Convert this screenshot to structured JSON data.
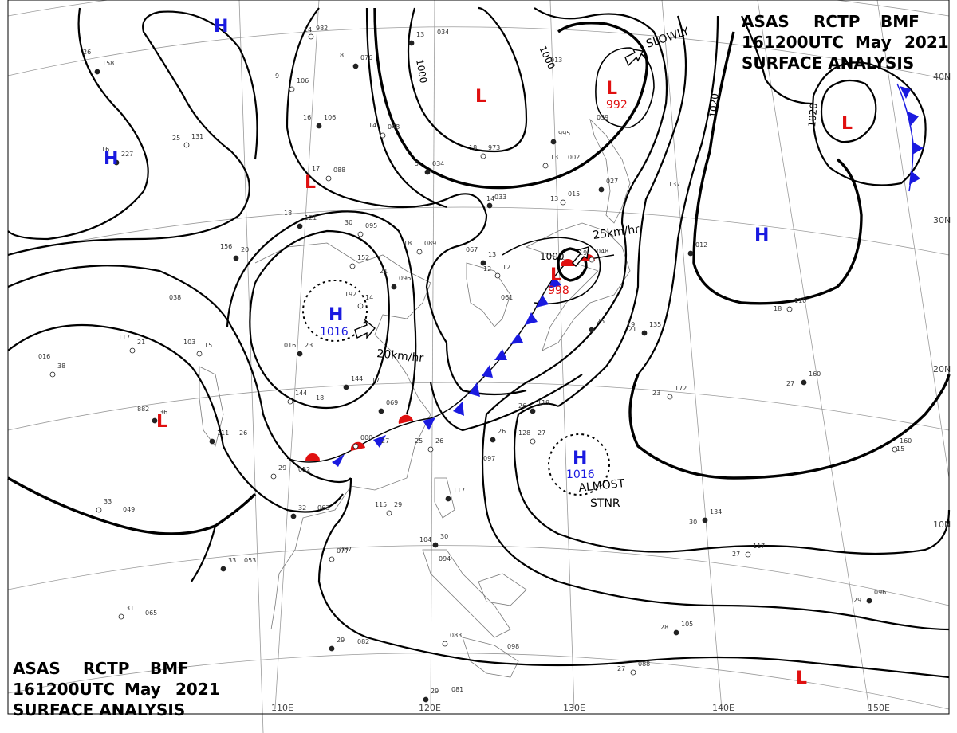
{
  "header": {
    "line1": [
      "ASAS",
      "RCTP",
      "BMF"
    ],
    "line2": [
      "161200UTC",
      "May",
      "2021"
    ],
    "line3": "SURFACE ANALYSIS"
  },
  "grid_labels": {
    "lat": [
      "40N",
      "30N",
      "20N",
      "10N"
    ],
    "lon": [
      "110E",
      "120E",
      "130E",
      "140E",
      "150E"
    ]
  },
  "isobar_labels": [
    "1000",
    "1000",
    "1000",
    "1020",
    "1020"
  ],
  "pressure_centers": [
    {
      "type": "H",
      "pressure": ""
    },
    {
      "type": "H",
      "pressure": ""
    },
    {
      "type": "L",
      "pressure": ""
    },
    {
      "type": "L",
      "pressure": "992"
    },
    {
      "type": "L",
      "pressure": ""
    },
    {
      "type": "L",
      "pressure": ""
    },
    {
      "type": "H",
      "pressure": "1016"
    },
    {
      "type": "L",
      "pressure": "998"
    },
    {
      "type": "H",
      "pressure": ""
    },
    {
      "type": "L",
      "pressure": ""
    },
    {
      "type": "H",
      "pressure": "1016"
    },
    {
      "type": "L",
      "pressure": ""
    }
  ],
  "motion_labels": [
    "SLOWLY",
    "25km/hr",
    "20km/hr",
    "ALMOST",
    "STNR"
  ],
  "station_labels": [
    "26",
    "158",
    "9",
    "106",
    "8",
    "076",
    "14",
    "982",
    "034",
    "13",
    "25",
    "131",
    "16",
    "227",
    "17",
    "088",
    "18",
    "121",
    "30",
    "095",
    "16",
    "106",
    "14",
    "048",
    "5",
    "034",
    "18",
    "973",
    "013",
    "995",
    "039",
    "13",
    "002",
    "027",
    "13",
    "015",
    "14",
    "033",
    "12",
    "152",
    "21",
    "096",
    "18",
    "089",
    "067",
    "13",
    "137",
    "12",
    "061",
    "012",
    "192",
    "14",
    "156",
    "20",
    "117",
    "21",
    "882",
    "36",
    "016",
    "38",
    "016",
    "23",
    "103",
    "15",
    "038",
    "144",
    "17",
    "144",
    "18",
    "111",
    "26",
    "000",
    "27",
    "069",
    "25",
    "26",
    "097",
    "117",
    "115",
    "29",
    "104",
    "30",
    "094",
    "077",
    "087",
    "33",
    "053",
    "31",
    "065",
    "29",
    "082",
    "083",
    "098",
    "29",
    "081",
    "33",
    "049",
    "32",
    "063",
    "29",
    "052",
    "26",
    "128",
    "27",
    "19",
    "135",
    "23",
    "172",
    "27",
    "160",
    "18",
    "110",
    "30",
    "134",
    "27",
    "117",
    "28",
    "105",
    "27",
    "088",
    "29",
    "096",
    "15",
    "160",
    "21",
    "25",
    "19",
    "048",
    "26",
    "119"
  ],
  "colors": {
    "high": "#1a1ae0",
    "low": "#e01010",
    "front_cold": "#1a1ae0",
    "front_warm": "#e01010"
  }
}
